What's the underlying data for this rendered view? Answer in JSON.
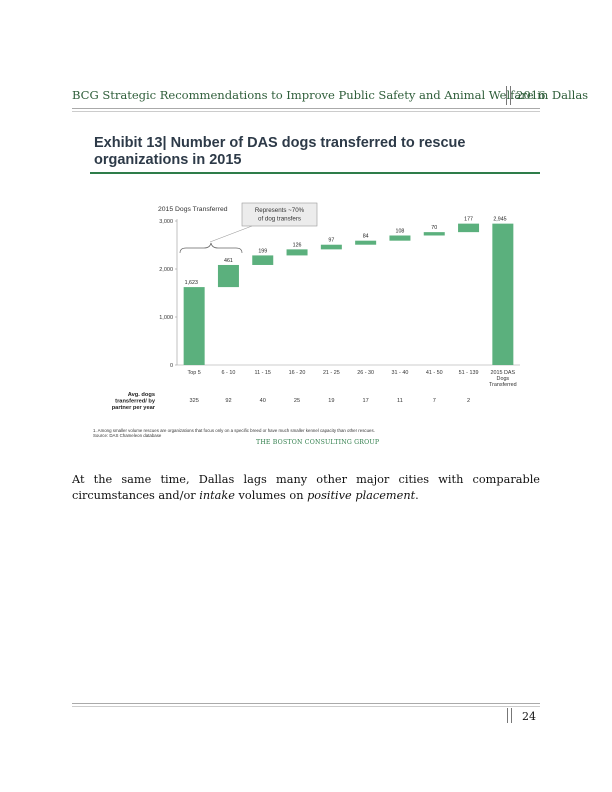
{
  "header": {
    "title": "BCG Strategic Recommendations to Improve Public Safety and Animal Welfare in Dallas",
    "year": "2016"
  },
  "exhibit": {
    "title": "Exhibit 13| Number of DAS dogs transferred to rescue organizations in 2015",
    "footnote_1": "1. Among smaller volume rescues are organizations that focus only on a specific breed or have much smaller kennel capacity than other rescues.",
    "source": "Source: DAS Chameleon database",
    "logo": "THE BOSTON CONSULTING GROUP"
  },
  "chart_data": {
    "type": "bar",
    "subtype": "waterfall",
    "title": "2015 Dogs Transferred",
    "categories": [
      "Top 5",
      "6 - 10",
      "11 - 15",
      "16 - 20",
      "21 - 25",
      "26 - 30",
      "31 - 40",
      "41 - 50",
      "51 - 139",
      "2015 DAS Dogs Transferred"
    ],
    "values": [
      1623,
      461,
      199,
      126,
      97,
      84,
      108,
      70,
      177,
      2945
    ],
    "value_labels": [
      "1,623",
      "461",
      "199",
      "126",
      "97",
      "84",
      "108",
      "70",
      "177",
      "2,945"
    ],
    "total_index": 9,
    "ylim": [
      0,
      3000
    ],
    "yticks": [
      0,
      1000,
      2000,
      3000
    ],
    "ytick_labels": [
      "0",
      "1,000",
      "2,000",
      "3,000"
    ],
    "callout": "Represents ~70% of dog transfers",
    "row_label": "Avg. dogs transferred/ by partner per year",
    "row_values": [
      "325",
      "92",
      "40",
      "25",
      "19",
      "17",
      "11",
      "7",
      "2",
      ""
    ],
    "bar_color": "#5bb07d",
    "grid": false
  },
  "body": {
    "text_prefix": "At the same time, Dallas lags many other major cities with comparable circumstances and/or ",
    "text_em1": "intake",
    "text_mid": " volumes on ",
    "text_em2": "positive placement",
    "text_suffix": "."
  },
  "footer": {
    "page_number": "24"
  }
}
